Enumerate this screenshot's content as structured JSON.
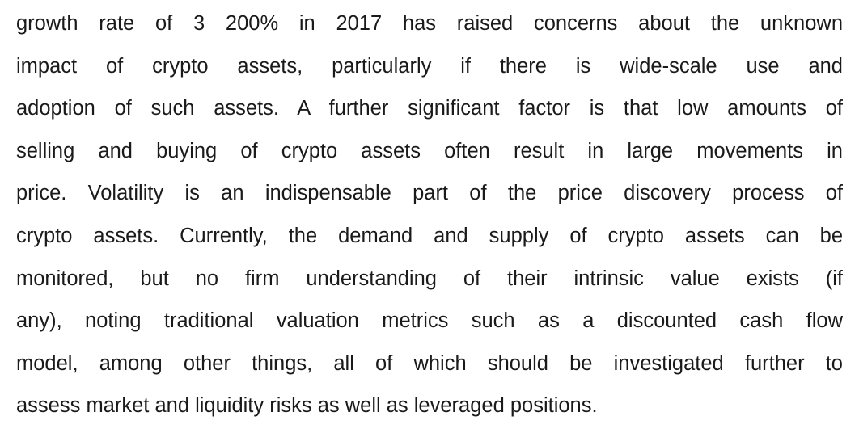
{
  "paragraph": {
    "lines": [
      "growth rate of 3 200% in 2017 has raised concerns about the unknown",
      "impact of crypto assets, particularly if there is wide-scale use and",
      "adoption of such assets. A further significant factor is that low amounts of",
      "selling and buying of crypto assets often result in large movements in",
      "price. Volatility is an indispensable part of the price discovery process of",
      "crypto assets. Currently, the demand and supply of crypto assets can be",
      "monitored, but no firm understanding of their intrinsic value exists (if",
      "any), noting traditional valuation metrics such as a discounted cash flow",
      "model, among other things, all of which should be investigated further to",
      "assess market and liquidity risks as well as leveraged positions."
    ]
  }
}
